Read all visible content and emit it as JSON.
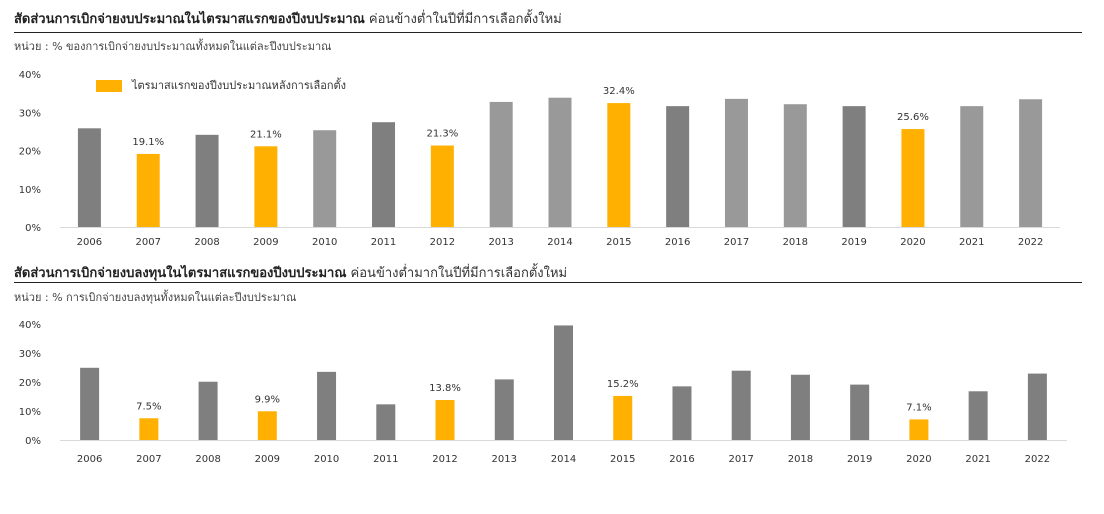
{
  "colors": {
    "dark_gray": "#7f7f7f",
    "light_gray": "#999999",
    "highlight": "#ffb000",
    "axis": "#d9d9d9"
  },
  "legend_label": "ไตรมาสแรกของปีงบประมาณหลังการเลือกตั้ง",
  "chart_data": [
    {
      "type": "bar",
      "title": "สัดส่วนการเบิกจ่ายงบประมาณในไตรมาสแรกของปีงบประมาณ",
      "subtitle": "ค่อนข้างต่ำในปีที่มีการเลือกตั้งใหม่",
      "ylabel": "หน่วย : % ของการเบิกจ่ายงบประมาณทั้งหมดในแต่ละปีงบประมาณ",
      "legend": "top-left",
      "ylim": [
        0,
        40
      ],
      "yticks": [
        "0%",
        "10%",
        "20%",
        "30%",
        "40%"
      ],
      "categories": [
        "2006",
        "2007",
        "2008",
        "2009",
        "2010",
        "2011",
        "2012",
        "2013",
        "2014",
        "2015",
        "2016",
        "2017",
        "2018",
        "2019",
        "2020",
        "2021",
        "2022"
      ],
      "values": [
        25.8,
        19.1,
        24.1,
        21.1,
        25.3,
        27.4,
        21.3,
        32.7,
        33.8,
        32.4,
        31.6,
        33.5,
        32.1,
        31.6,
        25.6,
        31.6,
        33.4
      ],
      "colors": [
        "dark_gray",
        "highlight",
        "dark_gray",
        "highlight",
        "light_gray",
        "dark_gray",
        "highlight",
        "light_gray",
        "light_gray",
        "highlight",
        "dark_gray",
        "light_gray",
        "light_gray",
        "dark_gray",
        "highlight",
        "light_gray",
        "light_gray"
      ],
      "data_labels": [
        "",
        "19.1%",
        "",
        "21.1%",
        "",
        "",
        "21.3%",
        "",
        "",
        "32.4%",
        "",
        "",
        "",
        "",
        "25.6%",
        "",
        ""
      ]
    },
    {
      "type": "bar",
      "title": "สัดส่วนการเบิกจ่ายงบลงทุนในไตรมาสแรกของปีงบประมาณ",
      "subtitle": "ค่อนข้างต่ำมากในปีที่มีการเลือกตั้งใหม่",
      "ylabel": "หน่วย : % การเบิกจ่ายงบลงทุนทั้งหมดในแต่ละปีงบประมาณ",
      "ylim": [
        0,
        40
      ],
      "yticks": [
        "0%",
        "10%",
        "20%",
        "30%",
        "40%"
      ],
      "categories": [
        "2006",
        "2007",
        "2008",
        "2009",
        "2010",
        "2011",
        "2012",
        "2013",
        "2014",
        "2015",
        "2016",
        "2017",
        "2018",
        "2019",
        "2020",
        "2021",
        "2022"
      ],
      "values": [
        24.9,
        7.5,
        20.1,
        9.9,
        23.5,
        12.3,
        13.8,
        20.9,
        39.5,
        15.2,
        18.5,
        23.9,
        22.5,
        19.1,
        7.1,
        16.8,
        22.9
      ],
      "colors": [
        "dark_gray",
        "highlight",
        "dark_gray",
        "highlight",
        "dark_gray",
        "dark_gray",
        "highlight",
        "dark_gray",
        "dark_gray",
        "highlight",
        "dark_gray",
        "dark_gray",
        "dark_gray",
        "dark_gray",
        "highlight",
        "dark_gray",
        "dark_gray"
      ],
      "data_labels": [
        "",
        "7.5%",
        "",
        "9.9%",
        "",
        "",
        "13.8%",
        "",
        "",
        "15.2%",
        "",
        "",
        "",
        "",
        "7.1%",
        "",
        ""
      ]
    }
  ]
}
